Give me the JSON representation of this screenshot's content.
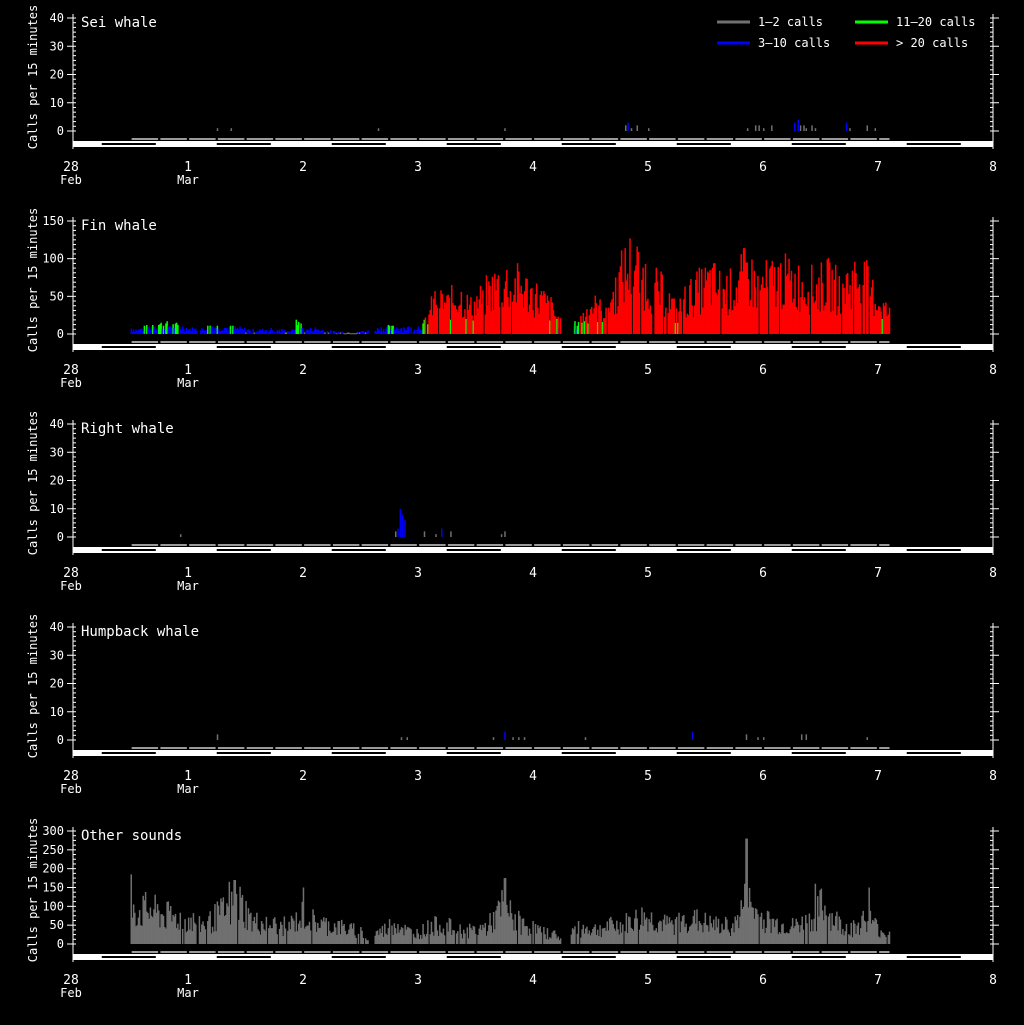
{
  "legend": {
    "placement": "top-right",
    "items": [
      {
        "label": "1–2 calls",
        "color": "#707070"
      },
      {
        "label": "3–10 calls",
        "color": "#0000ff"
      },
      {
        "label": "11–20 calls",
        "color": "#00ff00"
      },
      {
        "label": "> 20 calls",
        "color": "#ff0000"
      }
    ]
  },
  "chart_data": [
    {
      "type": "bar",
      "title": "Sei whale",
      "ylabel": "Calls per 15 minutes",
      "ylim": [
        0,
        40
      ],
      "yticks": [
        0,
        10,
        20,
        30,
        40
      ],
      "xlim": [
        0,
        8
      ],
      "xticks": [
        {
          "value": 0,
          "label": "28",
          "sub": "Feb"
        },
        {
          "value": 1,
          "label": "1",
          "sub": "Mar"
        },
        {
          "value": 2,
          "label": "2",
          "sub": ""
        },
        {
          "value": 3,
          "label": "3",
          "sub": ""
        },
        {
          "value": 4,
          "label": "4",
          "sub": ""
        },
        {
          "value": 5,
          "label": "5",
          "sub": ""
        },
        {
          "value": 6,
          "label": "6",
          "sub": ""
        },
        {
          "value": 7,
          "label": "7",
          "sub": ""
        },
        {
          "value": 8,
          "label": "8",
          "sub": ""
        }
      ],
      "bars": [
        [
          1.25,
          1
        ],
        [
          1.37,
          1
        ],
        [
          2.65,
          1
        ],
        [
          3.75,
          1
        ],
        [
          4.8,
          2
        ],
        [
          4.82,
          3
        ],
        [
          4.85,
          1
        ],
        [
          4.9,
          2
        ],
        [
          5.0,
          1
        ],
        [
          5.86,
          1
        ],
        [
          5.93,
          2
        ],
        [
          5.96,
          2
        ],
        [
          6.0,
          1
        ],
        [
          6.07,
          2
        ],
        [
          6.27,
          3
        ],
        [
          6.3,
          4
        ],
        [
          6.32,
          2
        ],
        [
          6.35,
          2
        ],
        [
          6.37,
          1
        ],
        [
          6.42,
          2
        ],
        [
          6.45,
          1
        ],
        [
          6.72,
          3
        ],
        [
          6.75,
          1
        ],
        [
          6.9,
          2
        ],
        [
          6.97,
          1
        ]
      ]
    },
    {
      "type": "bar",
      "title": "Fin whale",
      "ylabel": "Calls per 15 minutes",
      "ylim": [
        0,
        150
      ],
      "yticks": [
        0,
        50,
        100,
        150
      ],
      "xlim": [
        0,
        8
      ],
      "xticks": [
        {
          "value": 0,
          "label": "28",
          "sub": "Feb"
        },
        {
          "value": 1,
          "label": "1",
          "sub": "Mar"
        },
        {
          "value": 2,
          "label": "2",
          "sub": ""
        },
        {
          "value": 3,
          "label": "3",
          "sub": ""
        },
        {
          "value": 4,
          "label": "4",
          "sub": ""
        },
        {
          "value": 5,
          "label": "5",
          "sub": ""
        },
        {
          "value": 6,
          "label": "6",
          "sub": ""
        },
        {
          "value": 7,
          "label": "7",
          "sub": ""
        },
        {
          "value": 8,
          "label": "8",
          "sub": ""
        }
      ],
      "series_profile": [
        [
          0.5,
          8
        ],
        [
          0.55,
          6
        ],
        [
          0.6,
          8
        ],
        [
          0.65,
          10
        ],
        [
          0.7,
          15
        ],
        [
          0.8,
          14
        ],
        [
          0.9,
          12
        ],
        [
          1.0,
          8
        ],
        [
          1.1,
          6
        ],
        [
          1.2,
          12
        ],
        [
          1.3,
          10
        ],
        [
          1.4,
          9
        ],
        [
          1.5,
          6
        ],
        [
          1.6,
          5
        ],
        [
          1.7,
          7
        ],
        [
          1.8,
          6
        ],
        [
          1.9,
          4
        ],
        [
          1.95,
          20
        ],
        [
          2.0,
          5
        ],
        [
          2.1,
          8
        ],
        [
          2.2,
          4
        ],
        [
          2.3,
          3
        ],
        [
          2.45,
          2
        ],
        [
          2.6,
          6
        ],
        [
          2.7,
          9
        ],
        [
          2.85,
          10
        ],
        [
          2.95,
          8
        ],
        [
          3.05,
          15
        ],
        [
          3.1,
          35
        ],
        [
          3.15,
          55
        ],
        [
          3.25,
          45
        ],
        [
          3.35,
          60
        ],
        [
          3.45,
          40
        ],
        [
          3.55,
          55
        ],
        [
          3.65,
          70
        ],
        [
          3.75,
          80
        ],
        [
          3.85,
          75
        ],
        [
          3.95,
          65
        ],
        [
          4.05,
          55
        ],
        [
          4.15,
          40
        ],
        [
          4.25,
          12
        ],
        [
          4.3,
          5
        ],
        [
          4.4,
          20
        ],
        [
          4.5,
          45
        ],
        [
          4.6,
          35
        ],
        [
          4.7,
          60
        ],
        [
          4.75,
          85
        ],
        [
          4.85,
          110
        ],
        [
          4.95,
          90
        ],
        [
          5.05,
          70
        ],
        [
          5.15,
          60
        ],
        [
          5.25,
          30
        ],
        [
          5.3,
          50
        ],
        [
          5.45,
          70
        ],
        [
          5.55,
          80
        ],
        [
          5.65,
          65
        ],
        [
          5.75,
          70
        ],
        [
          5.85,
          95
        ],
        [
          5.95,
          70
        ],
        [
          6.05,
          80
        ],
        [
          6.15,
          85
        ],
        [
          6.25,
          80
        ],
        [
          6.35,
          75
        ],
        [
          6.45,
          70
        ],
        [
          6.55,
          80
        ],
        [
          6.65,
          70
        ],
        [
          6.75,
          80
        ],
        [
          6.85,
          90
        ],
        [
          6.95,
          60
        ],
        [
          7.05,
          40
        ],
        [
          7.1,
          30
        ]
      ]
    },
    {
      "type": "bar",
      "title": "Right whale",
      "ylabel": "Calls per 15 minutes",
      "ylim": [
        0,
        40
      ],
      "yticks": [
        0,
        10,
        20,
        30,
        40
      ],
      "xlim": [
        0,
        8
      ],
      "xticks": [
        {
          "value": 0,
          "label": "28",
          "sub": "Feb"
        },
        {
          "value": 1,
          "label": "1",
          "sub": "Mar"
        },
        {
          "value": 2,
          "label": "2",
          "sub": ""
        },
        {
          "value": 3,
          "label": "3",
          "sub": ""
        },
        {
          "value": 4,
          "label": "4",
          "sub": ""
        },
        {
          "value": 5,
          "label": "5",
          "sub": ""
        },
        {
          "value": 6,
          "label": "6",
          "sub": ""
        },
        {
          "value": 7,
          "label": "7",
          "sub": ""
        },
        {
          "value": 8,
          "label": "8",
          "sub": ""
        }
      ],
      "bars": [
        [
          0.93,
          1
        ],
        [
          2.8,
          2
        ],
        [
          2.82,
          3
        ],
        [
          2.84,
          10
        ],
        [
          2.86,
          8
        ],
        [
          2.88,
          6
        ],
        [
          3.05,
          2
        ],
        [
          3.15,
          1
        ],
        [
          3.2,
          3
        ],
        [
          3.28,
          2
        ],
        [
          3.72,
          1
        ],
        [
          3.75,
          2
        ]
      ]
    },
    {
      "type": "bar",
      "title": "Humpback whale",
      "ylabel": "Calls per 15 minutes",
      "ylim": [
        0,
        40
      ],
      "yticks": [
        0,
        10,
        20,
        30,
        40
      ],
      "xlim": [
        0,
        8
      ],
      "xticks": [
        {
          "value": 0,
          "label": "28",
          "sub": "Feb"
        },
        {
          "value": 1,
          "label": "1",
          "sub": "Mar"
        },
        {
          "value": 2,
          "label": "2",
          "sub": ""
        },
        {
          "value": 3,
          "label": "3",
          "sub": ""
        },
        {
          "value": 4,
          "label": "4",
          "sub": ""
        },
        {
          "value": 5,
          "label": "5",
          "sub": ""
        },
        {
          "value": 6,
          "label": "6",
          "sub": ""
        },
        {
          "value": 7,
          "label": "7",
          "sub": ""
        },
        {
          "value": 8,
          "label": "8",
          "sub": ""
        }
      ],
      "bars": [
        [
          1.25,
          2
        ],
        [
          2.85,
          1
        ],
        [
          2.9,
          1
        ],
        [
          3.65,
          1
        ],
        [
          3.75,
          3
        ],
        [
          3.82,
          1
        ],
        [
          3.87,
          1
        ],
        [
          3.92,
          1
        ],
        [
          4.45,
          1
        ],
        [
          5.38,
          3
        ],
        [
          5.85,
          2
        ],
        [
          5.95,
          1
        ],
        [
          6.0,
          1
        ],
        [
          6.33,
          2
        ],
        [
          6.37,
          2
        ],
        [
          6.9,
          1
        ]
      ]
    },
    {
      "type": "bar",
      "title": "Other sounds",
      "ylabel": "Calls per 15 minutes",
      "ylim": [
        0,
        300
      ],
      "yticks": [
        0,
        50,
        100,
        150,
        200,
        250,
        300
      ],
      "xlim": [
        0,
        8
      ],
      "xticks": [
        {
          "value": 0,
          "label": "28",
          "sub": "Feb"
        },
        {
          "value": 1,
          "label": "1",
          "sub": "Mar"
        },
        {
          "value": 2,
          "label": "2",
          "sub": ""
        },
        {
          "value": 3,
          "label": "3",
          "sub": ""
        },
        {
          "value": 4,
          "label": "4",
          "sub": ""
        },
        {
          "value": 5,
          "label": "5",
          "sub": ""
        },
        {
          "value": 6,
          "label": "6",
          "sub": ""
        },
        {
          "value": 7,
          "label": "7",
          "sub": ""
        },
        {
          "value": 8,
          "label": "8",
          "sub": ""
        }
      ],
      "series_profile": [
        [
          0.5,
          150
        ],
        [
          0.55,
          100
        ],
        [
          0.65,
          110
        ],
        [
          0.75,
          95
        ],
        [
          0.85,
          85
        ],
        [
          0.95,
          80
        ],
        [
          1.05,
          70
        ],
        [
          1.15,
          60
        ],
        [
          1.25,
          90
        ],
        [
          1.35,
          110
        ],
        [
          1.45,
          130
        ],
        [
          1.55,
          70
        ],
        [
          1.65,
          65
        ],
        [
          1.75,
          60
        ],
        [
          1.85,
          55
        ],
        [
          1.95,
          75
        ],
        [
          2.0,
          95
        ],
        [
          2.1,
          70
        ],
        [
          2.2,
          60
        ],
        [
          2.3,
          55
        ],
        [
          2.4,
          45
        ],
        [
          2.5,
          40
        ],
        [
          2.55,
          10
        ],
        [
          2.6,
          30
        ],
        [
          2.7,
          45
        ],
        [
          2.8,
          70
        ],
        [
          2.9,
          40
        ],
        [
          3.0,
          35
        ],
        [
          3.1,
          55
        ],
        [
          3.2,
          60
        ],
        [
          3.3,
          50
        ],
        [
          3.4,
          40
        ],
        [
          3.5,
          45
        ],
        [
          3.6,
          55
        ],
        [
          3.7,
          100
        ],
        [
          3.75,
          130
        ],
        [
          3.8,
          90
        ],
        [
          3.9,
          60
        ],
        [
          4.0,
          50
        ],
        [
          4.1,
          35
        ],
        [
          4.2,
          30
        ],
        [
          4.25,
          8
        ],
        [
          4.35,
          45
        ],
        [
          4.45,
          50
        ],
        [
          4.55,
          45
        ],
        [
          4.65,
          55
        ],
        [
          4.75,
          60
        ],
        [
          4.85,
          70
        ],
        [
          4.95,
          85
        ],
        [
          5.05,
          75
        ],
        [
          5.15,
          60
        ],
        [
          5.25,
          65
        ],
        [
          5.35,
          80
        ],
        [
          5.45,
          70
        ],
        [
          5.55,
          60
        ],
        [
          5.65,
          55
        ],
        [
          5.75,
          60
        ],
        [
          5.85,
          140
        ],
        [
          5.95,
          90
        ],
        [
          6.05,
          70
        ],
        [
          6.15,
          60
        ],
        [
          6.25,
          55
        ],
        [
          6.35,
          65
        ],
        [
          6.45,
          85
        ],
        [
          6.5,
          120
        ],
        [
          6.6,
          80
        ],
        [
          6.7,
          55
        ],
        [
          6.8,
          50
        ],
        [
          6.9,
          90
        ],
        [
          7.0,
          45
        ],
        [
          7.1,
          30
        ]
      ],
      "peaks": [
        [
          0.5,
          185
        ],
        [
          1.35,
          165
        ],
        [
          1.4,
          170
        ],
        [
          2.0,
          150
        ],
        [
          3.75,
          175
        ],
        [
          5.85,
          280
        ],
        [
          6.45,
          160
        ],
        [
          6.92,
          150
        ]
      ]
    }
  ]
}
